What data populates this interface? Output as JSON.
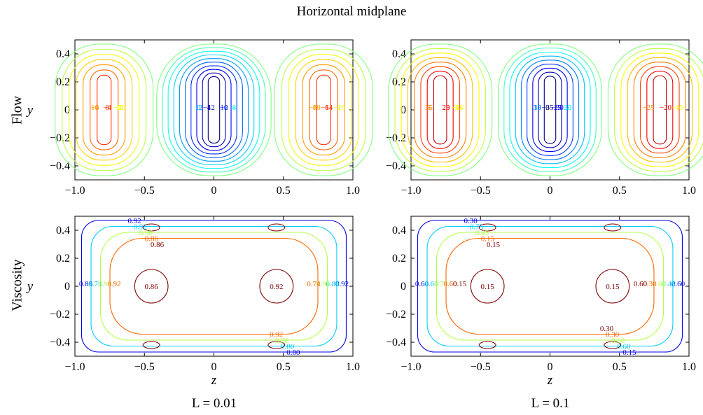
{
  "figure": {
    "title": "Horizontal midplane",
    "row_labels": [
      "Flow",
      "Viscosity"
    ],
    "col_captions": [
      "L = 0.01",
      "L = 0.1"
    ]
  },
  "chart_data": [
    {
      "type": "contour",
      "row": "Flow",
      "column": "L = 0.01",
      "xlabel": "",
      "ylabel": "y",
      "xlim": [
        -1.0,
        1.0
      ],
      "ylim": [
        -0.5,
        0.5
      ],
      "xticks": [
        "-1.0",
        "-0.5",
        "0",
        "0.5",
        "1.0"
      ],
      "yticks": [
        "0.4",
        "0.2",
        "0",
        "-0.2",
        "-0.4"
      ],
      "cells": [
        {
          "center": -0.79,
          "extent": 0.36,
          "sign": 1,
          "levels": [
            0,
            2,
            4,
            6,
            8,
            10,
            12
          ]
        },
        {
          "center": 0.0,
          "extent": 0.42,
          "sign": -1,
          "levels": [
            0,
            -2,
            -4,
            -6,
            -8,
            -10,
            -12,
            -14,
            -16,
            -18
          ]
        },
        {
          "center": 0.79,
          "extent": 0.36,
          "sign": 1,
          "levels": [
            0,
            2,
            4,
            6,
            8,
            10,
            12
          ]
        }
      ],
      "labels": [
        "12",
        "10",
        "8",
        "4",
        "0",
        "-2",
        "-12",
        "-16",
        "-18",
        "-14",
        "-10",
        "-6",
        "-4",
        "8",
        "12",
        "10",
        "4",
        "2",
        "0",
        "6",
        "0"
      ]
    },
    {
      "type": "contour",
      "row": "Flow",
      "column": "L = 0.1",
      "xlabel": "",
      "ylabel": "",
      "xlim": [
        -1.0,
        1.0
      ],
      "ylim": [
        -0.5,
        0.5
      ],
      "xticks": [
        "-1.0",
        "-0.5",
        "0",
        "0.5",
        "1.0"
      ],
      "yticks": [
        "0.4",
        "0.2",
        "0",
        "-0.2",
        "-0.4"
      ],
      "cells": [
        {
          "center": -0.79,
          "extent": 0.38,
          "sign": 1,
          "levels": [
            0,
            5,
            10,
            15,
            20,
            25,
            30,
            35
          ]
        },
        {
          "center": 0.0,
          "extent": 0.38,
          "sign": -1,
          "levels": [
            0,
            -5,
            -10,
            -15,
            -20,
            -25,
            -30,
            -35,
            -40
          ]
        },
        {
          "center": 0.79,
          "extent": 0.38,
          "sign": 1,
          "levels": [
            0,
            5,
            10,
            15,
            20,
            25,
            30,
            35
          ]
        }
      ],
      "labels": [
        "30",
        "35",
        "25",
        "20",
        "10",
        "-30",
        "-35",
        "-40",
        "-25",
        "-20",
        "-15",
        "5",
        "20",
        "30",
        "35",
        "25",
        "0"
      ]
    },
    {
      "type": "contour",
      "row": "Viscosity",
      "column": "L = 0.01",
      "xlabel": "z",
      "ylabel": "y",
      "xlim": [
        -1.0,
        1.0
      ],
      "ylim": [
        -0.5,
        0.5
      ],
      "xticks": [
        "-1.0",
        "-0.5",
        "0",
        "0.5",
        "1.0"
      ],
      "yticks": [
        "0.4",
        "0.2",
        "0",
        "-0.2",
        "-0.4"
      ],
      "levels": [
        0.74,
        0.8,
        0.86,
        0.92,
        0.98
      ],
      "labels": [
        "0.92",
        "0.86",
        "0.92",
        "0.80",
        "0.86",
        "0.92",
        "0.92",
        "0.80",
        "0.74",
        "0.86",
        "0.98",
        "0.98",
        "0.98",
        "0.92",
        "0.86",
        "0.92",
        "0.92",
        "0.74",
        "0.86"
      ]
    },
    {
      "type": "contour",
      "row": "Viscosity",
      "column": "L = 0.1",
      "xlabel": "z",
      "ylabel": "",
      "xlim": [
        -1.0,
        1.0
      ],
      "ylim": [
        -0.5,
        0.5
      ],
      "xticks": [
        "-1.0",
        "-0.5",
        "0",
        "0.5",
        "1.0"
      ],
      "yticks": [
        "0.4",
        "0.2",
        "0",
        "-0.2",
        "-0.4"
      ],
      "levels": [
        0.15,
        0.3,
        0.45,
        0.6,
        0.75
      ],
      "labels": [
        "0.15",
        "0.15",
        "0.30",
        "0.15",
        "0.60",
        "0.60",
        "0.75",
        "0.60",
        "0.60",
        "0.45",
        "0.45",
        "0.60",
        "0.75",
        "0.60",
        "0.15",
        "0.30",
        "0.60",
        "0.30",
        "0.15",
        "0.30",
        "0.15",
        "0.60"
      ]
    }
  ]
}
